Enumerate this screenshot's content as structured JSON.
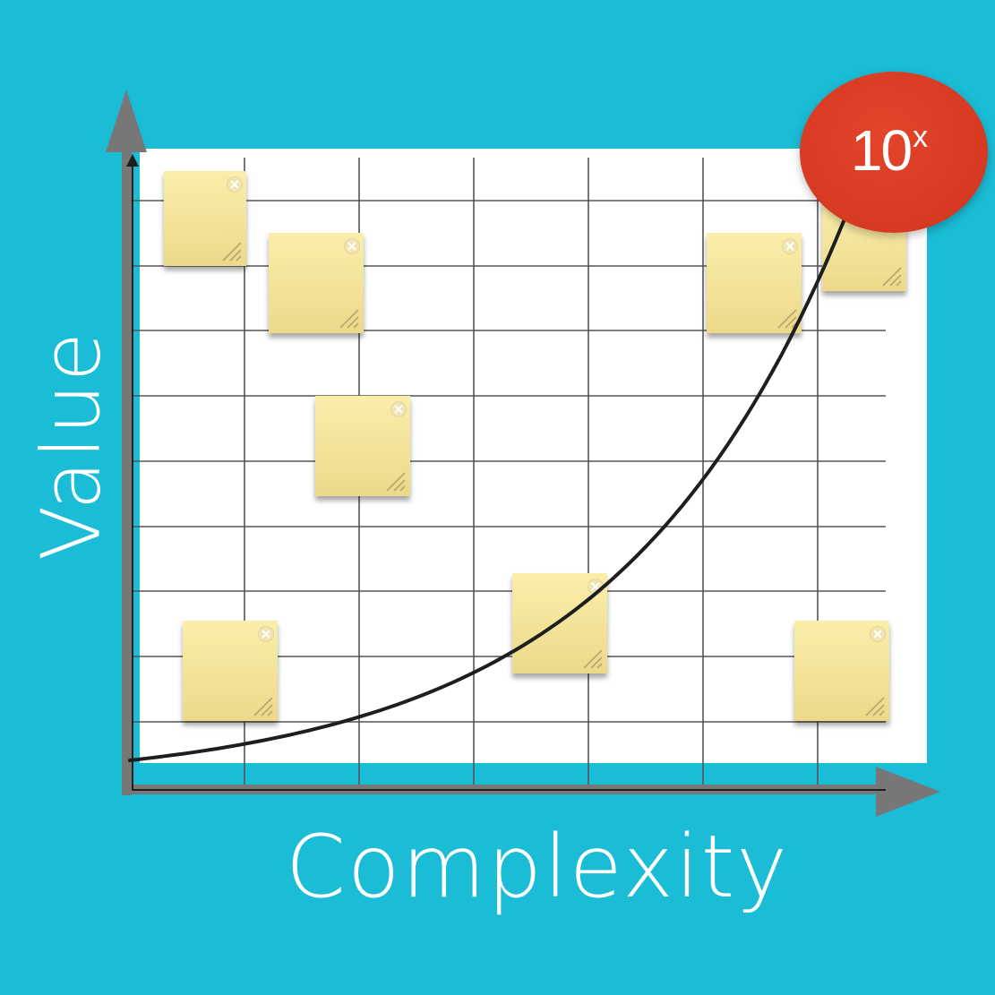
{
  "diagram": {
    "x_axis_label": "Complexity",
    "y_axis_label": "Value",
    "badge": {
      "base": "10",
      "exponent": "x"
    },
    "colors": {
      "background": "#1bbcd6",
      "board": "#ffffff",
      "grid": "#555555",
      "axis": "#777777",
      "curve": "#1e1e1e",
      "note": "#f5e49a",
      "badge": "#d63a22"
    },
    "icons": {
      "note_close": "close-circle-icon",
      "note_resize": "resize-grip-icon",
      "axis_arrows": "arrow-icon"
    },
    "sticky_note_count": 8
  }
}
